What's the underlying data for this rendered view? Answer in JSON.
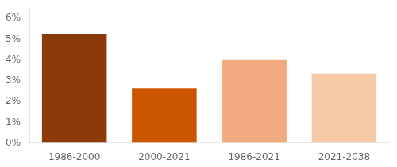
{
  "chart_data": {
    "type": "bar",
    "categories": [
      "1986-2000",
      "2000-2021",
      "1986-2021",
      "2021-2038"
    ],
    "values": [
      0.0525,
      0.0265,
      0.04,
      0.0335
    ],
    "colors": [
      "#8B3A0A",
      "#CC5500",
      "#F2AA80",
      "#F5C8A8"
    ],
    "ylim": [
      0,
      0.065
    ],
    "yticks": [
      {
        "value": 0,
        "label": "0%"
      },
      {
        "value": 0.01,
        "label": "1%"
      },
      {
        "value": 0.02,
        "label": "2%"
      },
      {
        "value": 0.03,
        "label": "3%"
      },
      {
        "value": 0.04,
        "label": "4%"
      },
      {
        "value": 0.05,
        "label": "5%"
      },
      {
        "value": 0.06,
        "label": "6%"
      }
    ],
    "grid": false
  }
}
